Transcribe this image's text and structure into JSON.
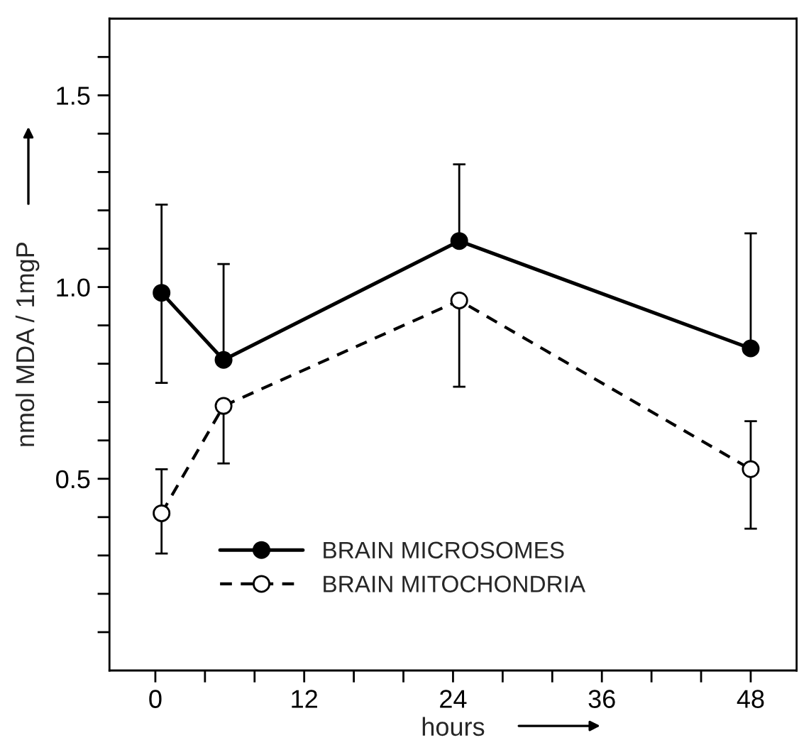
{
  "chart_data": {
    "type": "line",
    "xlabel": "hours",
    "ylabel": "nmol MDA / 1mgP",
    "xlim": [
      -3.7,
      51.7
    ],
    "xticks": [
      0,
      {
        "value": 4,
        "label": null
      },
      {
        "value": 8,
        "label": null
      },
      12,
      {
        "value": 16,
        "label": null
      },
      {
        "value": 20,
        "label": null
      },
      24,
      {
        "value": 28,
        "label": null
      },
      {
        "value": 32,
        "label": null
      },
      36,
      {
        "value": 40,
        "label": null
      },
      {
        "value": 44,
        "label": null
      },
      48
    ],
    "ylim": [
      0,
      1.7
    ],
    "yticks": [
      {
        "value": 0.1,
        "label": null
      },
      {
        "value": 0.2,
        "label": null
      },
      {
        "value": 0.3,
        "label": null
      },
      {
        "value": 0.4,
        "label": null
      },
      {
        "value": 0.5,
        "label": "0.5"
      },
      {
        "value": 0.6,
        "label": null
      },
      {
        "value": 0.7,
        "label": null
      },
      {
        "value": 0.8,
        "label": null
      },
      {
        "value": 0.9,
        "label": null
      },
      {
        "value": 1.0,
        "label": "1.0"
      },
      {
        "value": 1.1,
        "label": null
      },
      {
        "value": 1.2,
        "label": null
      },
      {
        "value": 1.3,
        "label": null
      },
      {
        "value": 1.4,
        "label": null
      },
      {
        "value": 1.5,
        "label": "1.5"
      },
      {
        "value": 1.6,
        "label": null
      }
    ],
    "grid": false,
    "legend": "bottom",
    "series": [
      {
        "name": "BRAIN MICROSOMES",
        "color": "#000000",
        "marker": "circle",
        "line_style": "solid",
        "x": [
          0.5,
          5.5,
          24.5,
          48
        ],
        "values": [
          0.985,
          0.81,
          1.12,
          0.84
        ],
        "errors": [
          [
            0.75,
            1.215
          ],
          [
            0.81,
            1.06
          ],
          [
            1.12,
            1.32
          ],
          [
            0.84,
            1.14
          ]
        ]
      },
      {
        "name": "BRAIN MITOCHONDRIA",
        "color": "#000000",
        "marker": "circle",
        "line_style": "dashed",
        "x": [
          0.5,
          5.5,
          24.5,
          48
        ],
        "values": [
          0.41,
          0.69,
          0.965,
          0.525
        ],
        "errors": [
          [
            0.305,
            0.525
          ],
          [
            0.54,
            0.69
          ],
          [
            0.74,
            0.965
          ],
          [
            0.37,
            0.65
          ]
        ]
      }
    ]
  }
}
